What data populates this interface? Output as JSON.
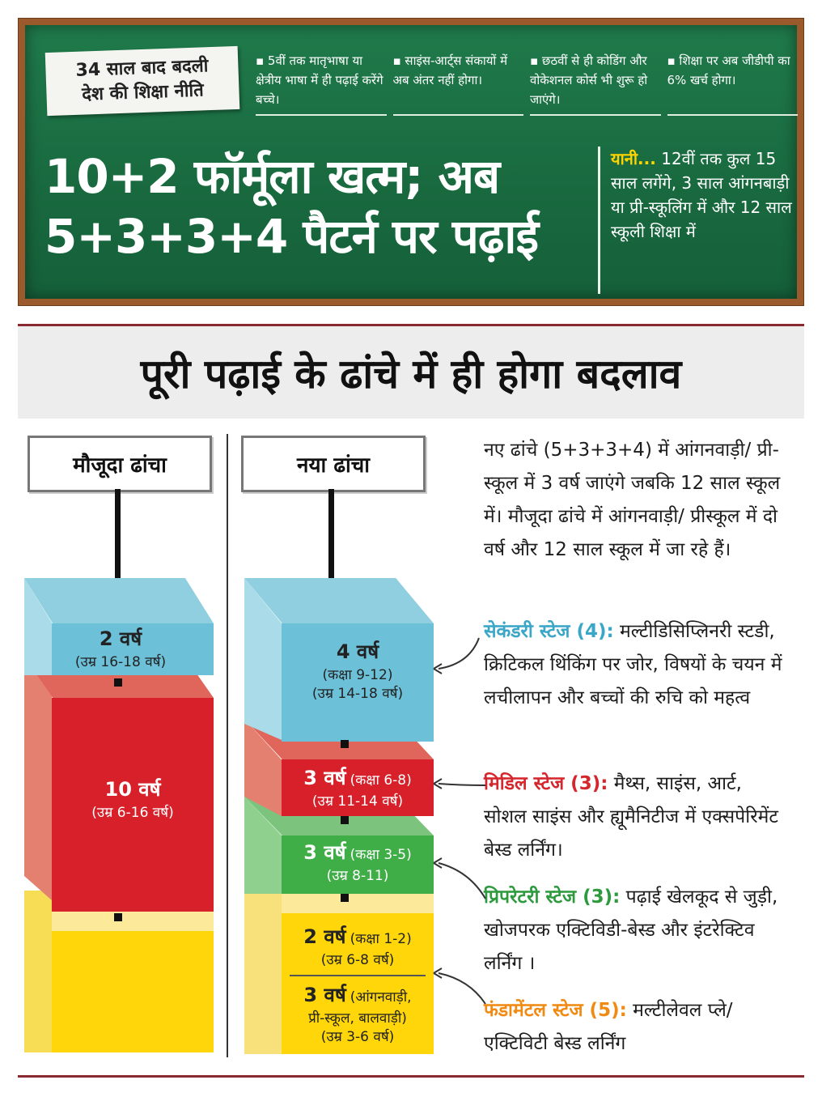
{
  "board": {
    "tag": "34 साल बाद बदली\nदेश की शिक्षा नीति",
    "points": [
      "▪ 5वीं तक मातृभाषा या क्षेत्रीय भाषा में ही पढ़ाई करेंगे बच्चे।",
      "▪ साइंस-आर्ट्स संकायों में अब अंतर नहीं होगा।",
      "▪ छठवीं से ही कोडिंग और वोकेशनल कोर्स भी शुरू हो जाएंगे।",
      "▪ शिक्षा पर अब जीडीपी का 6% खर्च होगा।"
    ],
    "headline": "10+2 फॉर्मूला खत्म; अब\n5+3+3+4 पैटर्न पर पढ़ाई",
    "yaani_label": "यानी...",
    "yaani_text": "12वीं तक कुल 15 साल लगेंगे, 3 साल आंगनबाड़ी या प्री-स्कूलिंग में और 12 साल स्कूली शिक्षा में"
  },
  "banner": "पूरी पढ़ाई के ढांचे में ही होगा बदलाव",
  "current": {
    "label": "मौजूदा ढांचा",
    "blocks": [
      {
        "years": "2 वर्ष",
        "age": "(उम्र 16-18 वर्ष)"
      },
      {
        "years": "10 वर्ष",
        "age": "(उम्र 6-16 वर्ष)"
      }
    ]
  },
  "new": {
    "label": "नया ढांचा",
    "blocks": [
      {
        "years": "4 वर्ष",
        "class": "(कक्षा 9-12)",
        "age": "(उम्र 14-18 वर्ष)"
      },
      {
        "years": "3 वर्ष",
        "class": "(कक्षा 6-8)",
        "age": "(उम्र 11-14 वर्ष)"
      },
      {
        "years": "3 वर्ष",
        "class": "(कक्षा 3-5)",
        "age": "(उम्र 8-11)"
      },
      {
        "years": "2 वर्ष",
        "class": "(कक्षा 1-2)",
        "age": "(उम्र 6-8 वर्ष)"
      },
      {
        "years": "3 वर्ष",
        "class": "(आंगनवाड़ी,",
        "class2": "प्री-स्कूल, बालवाड़ी)",
        "age": "(उम्र 3-6 वर्ष)"
      }
    ]
  },
  "intro": "नए ढांचे (5+3+3+4) में आंगनवाड़ी/ प्री-स्कूल में 3 वर्ष जाएंगे जबकि 12 साल स्कूल में। मौजूदा ढांचे में आंगनवाड़ी/ प्रीस्कूल में दो वर्ष और 12 साल स्कूल में जा रहे हैं।",
  "stages": [
    {
      "name": "सेकंडरी स्टेज (4):",
      "text": " मल्टीडिसिप्लिनरी स्टडी, क्रिटिकल थिंकिंग पर जोर, विषयों के चयन में लचीलापन और बच्चों की रुचि को महत्व",
      "color": "#3aa6c8"
    },
    {
      "name": "मिडिल स्टेज (3):",
      "text": " मैथ्स, साइंस, आर्ट, सोशल साइंस और ह्यूमैनिटीज में एक्सपेरिमेंट बेस्ड लर्निंग।",
      "color": "#d4262c"
    },
    {
      "name": "प्रिपरेटरी स्टेज (3):",
      "text": " पढ़ाई खेलकूद से जुड़ी, खोजपरक एक्टिविडी-बेस्ड और इंटरेक्टिव लर्निंग ।",
      "color": "#2e9a3e"
    },
    {
      "name": "फंडामेंटल स्टेज (5):",
      "text": " मल्टीलेवल प्ले/ एक्टिविटी बेस्ड लर्निंग",
      "color": "#f08a12"
    }
  ]
}
